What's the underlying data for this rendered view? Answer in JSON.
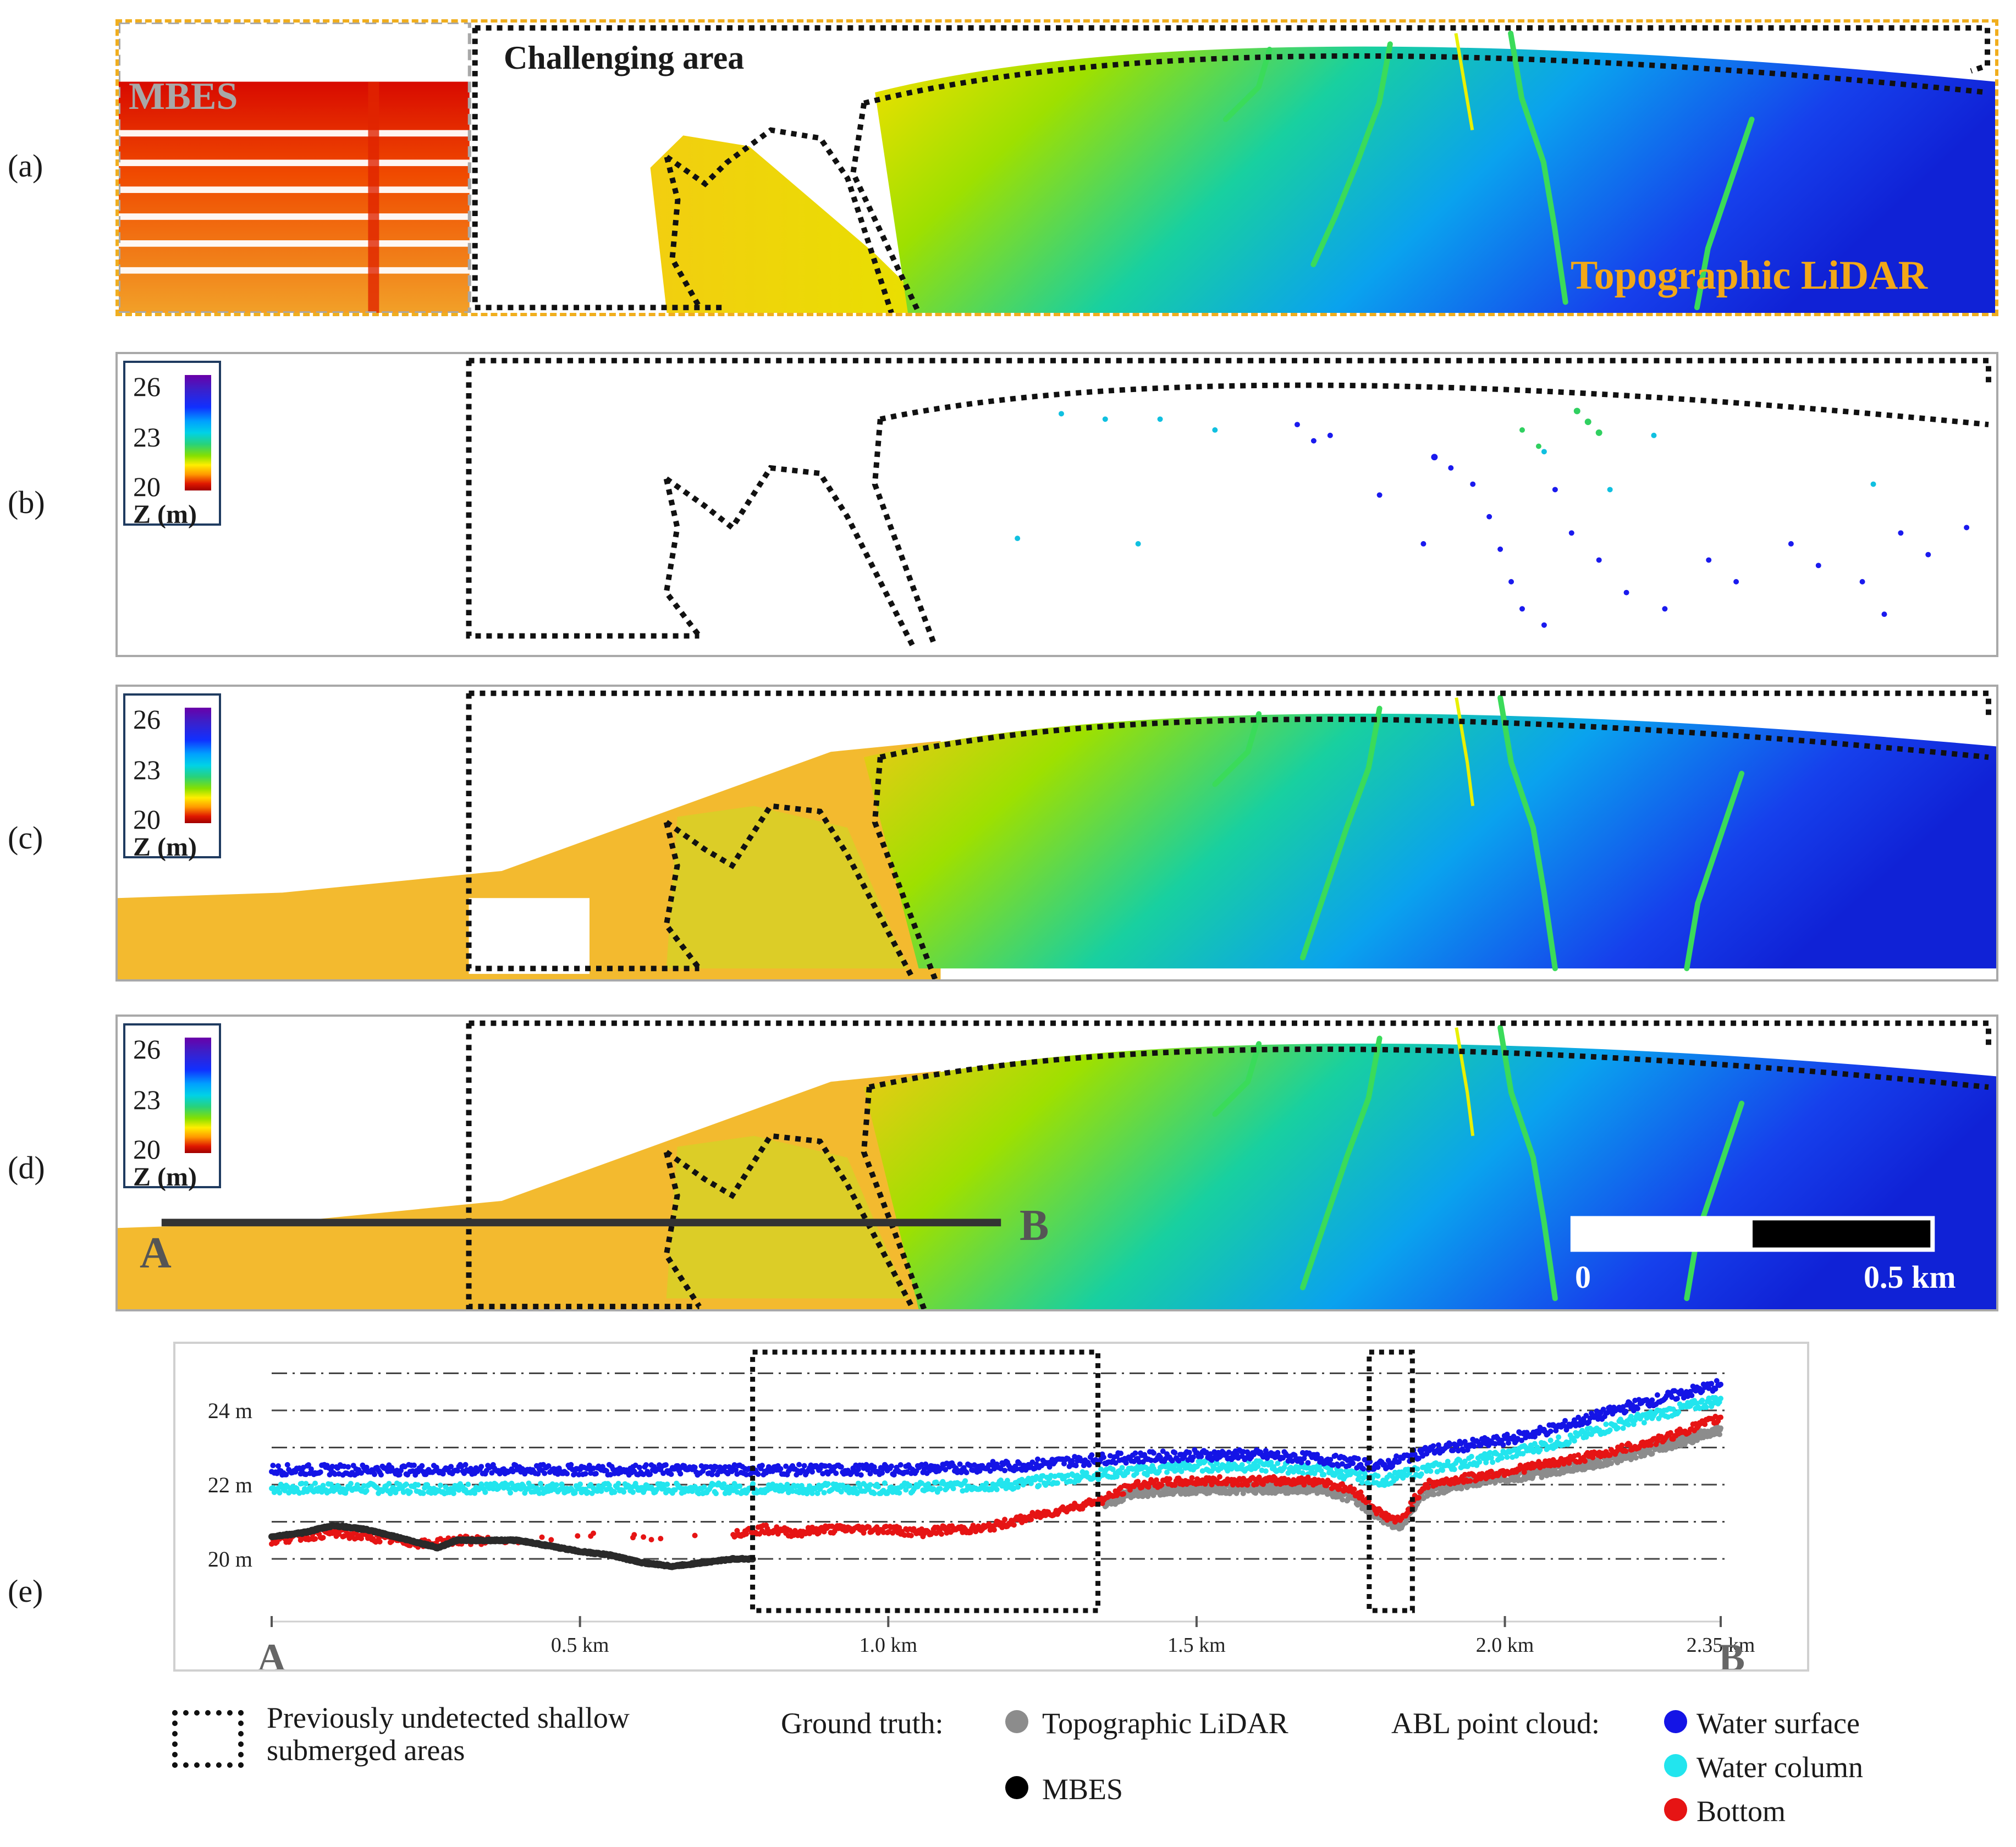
{
  "panels": {
    "a": {
      "letter": "(a)",
      "challenging": "Challenging area",
      "mbes": "MBES",
      "lidar": "Topographic LiDAR"
    },
    "b": {
      "letter": "(b)"
    },
    "c": {
      "letter": "(c)"
    },
    "d": {
      "letter": "(d)",
      "point_a": "A",
      "point_b": "B",
      "scale_zero": "0",
      "scale_max": "0.5 km"
    },
    "e": {
      "letter": "(e)"
    }
  },
  "colorbar": {
    "ticks": [
      "26",
      "23",
      "20"
    ],
    "label": "Z (m)"
  },
  "chart_data": {
    "type": "scatter",
    "title": "",
    "xlabel": "",
    "ylabel": "",
    "xlim": [
      0,
      2.35
    ],
    "ylim": [
      19.2,
      25.2
    ],
    "x_ticks": [
      "0.5 km",
      "1.0 km",
      "1.5 km",
      "2.0 km",
      "2.35 km"
    ],
    "x_tick_values": [
      0.5,
      1.0,
      1.5,
      2.0,
      2.35
    ],
    "y_ticks": [
      "24 m",
      "22 m",
      "20 m"
    ],
    "y_tick_values": [
      24,
      22,
      20
    ],
    "start_label": "A",
    "end_label": "B",
    "highlight_ranges_km": [
      [
        0.78,
        1.34
      ],
      [
        1.78,
        1.85
      ]
    ],
    "series": [
      {
        "name": "Water surface",
        "color": "#1414e6",
        "x": [
          0.0,
          0.2,
          0.4,
          0.6,
          0.8,
          1.0,
          1.2,
          1.35,
          1.5,
          1.6,
          1.7,
          1.8,
          1.87,
          2.0,
          2.1,
          2.2,
          2.35
        ],
        "y": [
          22.4,
          22.4,
          22.4,
          22.4,
          22.4,
          22.4,
          22.5,
          22.7,
          22.8,
          22.8,
          22.7,
          22.5,
          22.9,
          23.2,
          23.6,
          24.1,
          24.7
        ]
      },
      {
        "name": "Water column",
        "color": "#22e5ee",
        "x": [
          0.0,
          0.2,
          0.4,
          0.6,
          0.8,
          1.0,
          1.2,
          1.35,
          1.5,
          1.6,
          1.7,
          1.8,
          1.87,
          2.0,
          2.1,
          2.2,
          2.35
        ],
        "y": [
          21.9,
          21.9,
          21.9,
          21.9,
          21.9,
          21.9,
          22.0,
          22.3,
          22.5,
          22.5,
          22.4,
          22.1,
          22.4,
          22.8,
          23.2,
          23.7,
          24.3
        ]
      },
      {
        "name": "Bottom",
        "color": "#e61414",
        "x": [
          0.0,
          0.05,
          0.1,
          0.15,
          0.25,
          0.3,
          0.4,
          0.5,
          0.6,
          0.65,
          0.7,
          0.75,
          0.8,
          0.85,
          0.9,
          0.95,
          1.0,
          1.05,
          1.1,
          1.15,
          1.2,
          1.25,
          1.3,
          1.35,
          1.4,
          1.5,
          1.6,
          1.7,
          1.76,
          1.8,
          1.83,
          1.87,
          1.95,
          2.05,
          2.15,
          2.25,
          2.35
        ],
        "y": [
          20.5,
          20.6,
          20.7,
          20.6,
          20.4,
          20.5,
          20.5,
          20.6,
          20.6,
          20.6,
          20.6,
          20.7,
          20.8,
          20.7,
          20.8,
          20.8,
          20.8,
          20.7,
          20.8,
          20.8,
          21.0,
          21.2,
          21.4,
          21.6,
          22.0,
          22.1,
          22.1,
          22.1,
          21.8,
          21.2,
          21.0,
          22.0,
          22.2,
          22.5,
          22.8,
          23.2,
          23.8
        ]
      },
      {
        "name": "Topographic LiDAR",
        "color": "#8c8c8c",
        "x": [
          1.35,
          1.4,
          1.5,
          1.6,
          1.7,
          1.76,
          1.8,
          1.83,
          1.87,
          1.95,
          2.05,
          2.15,
          2.25,
          2.35
        ],
        "y": [
          21.5,
          21.8,
          21.9,
          21.9,
          21.9,
          21.6,
          21.1,
          20.9,
          21.8,
          22.1,
          22.3,
          22.6,
          23.0,
          23.5
        ]
      },
      {
        "name": "MBES",
        "color": "#2a2a2a",
        "x": [
          0.0,
          0.05,
          0.1,
          0.15,
          0.2,
          0.27,
          0.3,
          0.35,
          0.4,
          0.5,
          0.55,
          0.6,
          0.65,
          0.7,
          0.75,
          0.78
        ],
        "y": [
          20.6,
          20.7,
          20.9,
          20.8,
          20.6,
          20.3,
          20.5,
          20.5,
          20.5,
          20.2,
          20.1,
          19.9,
          19.8,
          19.9,
          20.0,
          20.0
        ]
      }
    ]
  },
  "legend": {
    "undetected": "Previously undetected shallow\nsubmerged areas",
    "ground_truth_label": "Ground truth:",
    "lidar_label": "Topographic LiDAR",
    "mbes_label": "MBES",
    "abl_label": "ABL point cloud:",
    "water_surface": "Water surface",
    "water_column": "Water column",
    "bottom": "Bottom",
    "colors": {
      "lidar": "#8c8c8c",
      "mbes": "#000000",
      "surface": "#1414e6",
      "column": "#22e5ee",
      "bottom": "#e61414"
    }
  }
}
